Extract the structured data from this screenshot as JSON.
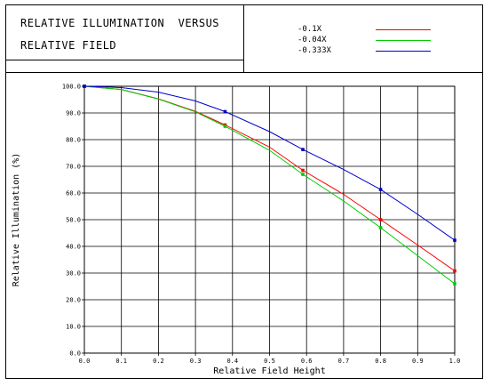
{
  "header": {
    "title_lines": [
      "RELATIVE ILLUMINATION  VERSUS",
      "RELATIVE FIELD"
    ]
  },
  "chart_data": {
    "type": "line",
    "title": "RELATIVE ILLUMINATION  VERSUS RELATIVE FIELD",
    "xlabel": "Relative Field Height",
    "ylabel": "Relative Illumination (%)",
    "xlim": [
      0,
      1.0
    ],
    "ylim": [
      0,
      100
    ],
    "grid": true,
    "legend_position": "top-right",
    "x_ticks": [
      "0.0",
      "0.1",
      "0.2",
      "0.3",
      "0.4",
      "0.5",
      "0.6",
      "0.7",
      "0.8",
      "0.9",
      "1.0"
    ],
    "y_ticks": [
      "0.0",
      "10.0",
      "20.0",
      "30.0",
      "40.0",
      "50.0",
      "60.0",
      "70.0",
      "80.0",
      "90.0",
      "100.0"
    ],
    "series": [
      {
        "name": "-0.1X",
        "color": "#ff0000",
        "x": [
          0,
          0.1,
          0.2,
          0.3,
          0.38,
          0.5,
          0.59,
          0.7,
          0.8,
          0.9,
          1.0
        ],
        "y": [
          100,
          98.8,
          95.3,
          90.6,
          85.5,
          77.2,
          68.5,
          59.5,
          50.0,
          40.5,
          30.8
        ],
        "markers_x": [
          0,
          0.38,
          0.59,
          0.8,
          1.0
        ],
        "markers_y": [
          100,
          85.5,
          68.5,
          50.0,
          30.8
        ]
      },
      {
        "name": "-0.04X",
        "color": "#00cc00",
        "x": [
          0,
          0.1,
          0.2,
          0.3,
          0.38,
          0.5,
          0.59,
          0.7,
          0.8,
          0.9,
          1.0
        ],
        "y": [
          100,
          98.8,
          95.2,
          90.4,
          85.0,
          76.0,
          67.0,
          57.0,
          47.0,
          36.5,
          26.0
        ],
        "markers_x": [
          0,
          0.38,
          0.59,
          0.8,
          1.0
        ],
        "markers_y": [
          100,
          85.0,
          67.0,
          47.0,
          26.0
        ]
      },
      {
        "name": "-0.333X",
        "color": "#0000cc",
        "x": [
          0,
          0.1,
          0.2,
          0.3,
          0.38,
          0.5,
          0.59,
          0.7,
          0.8,
          0.9,
          1.0
        ],
        "y": [
          100,
          99.5,
          97.8,
          94.5,
          90.5,
          83.0,
          76.3,
          68.8,
          61.3,
          52.0,
          42.3
        ],
        "markers_x": [
          0,
          0.38,
          0.59,
          0.8,
          1.0
        ],
        "markers_y": [
          100,
          90.5,
          76.3,
          61.3,
          42.3
        ]
      }
    ]
  }
}
